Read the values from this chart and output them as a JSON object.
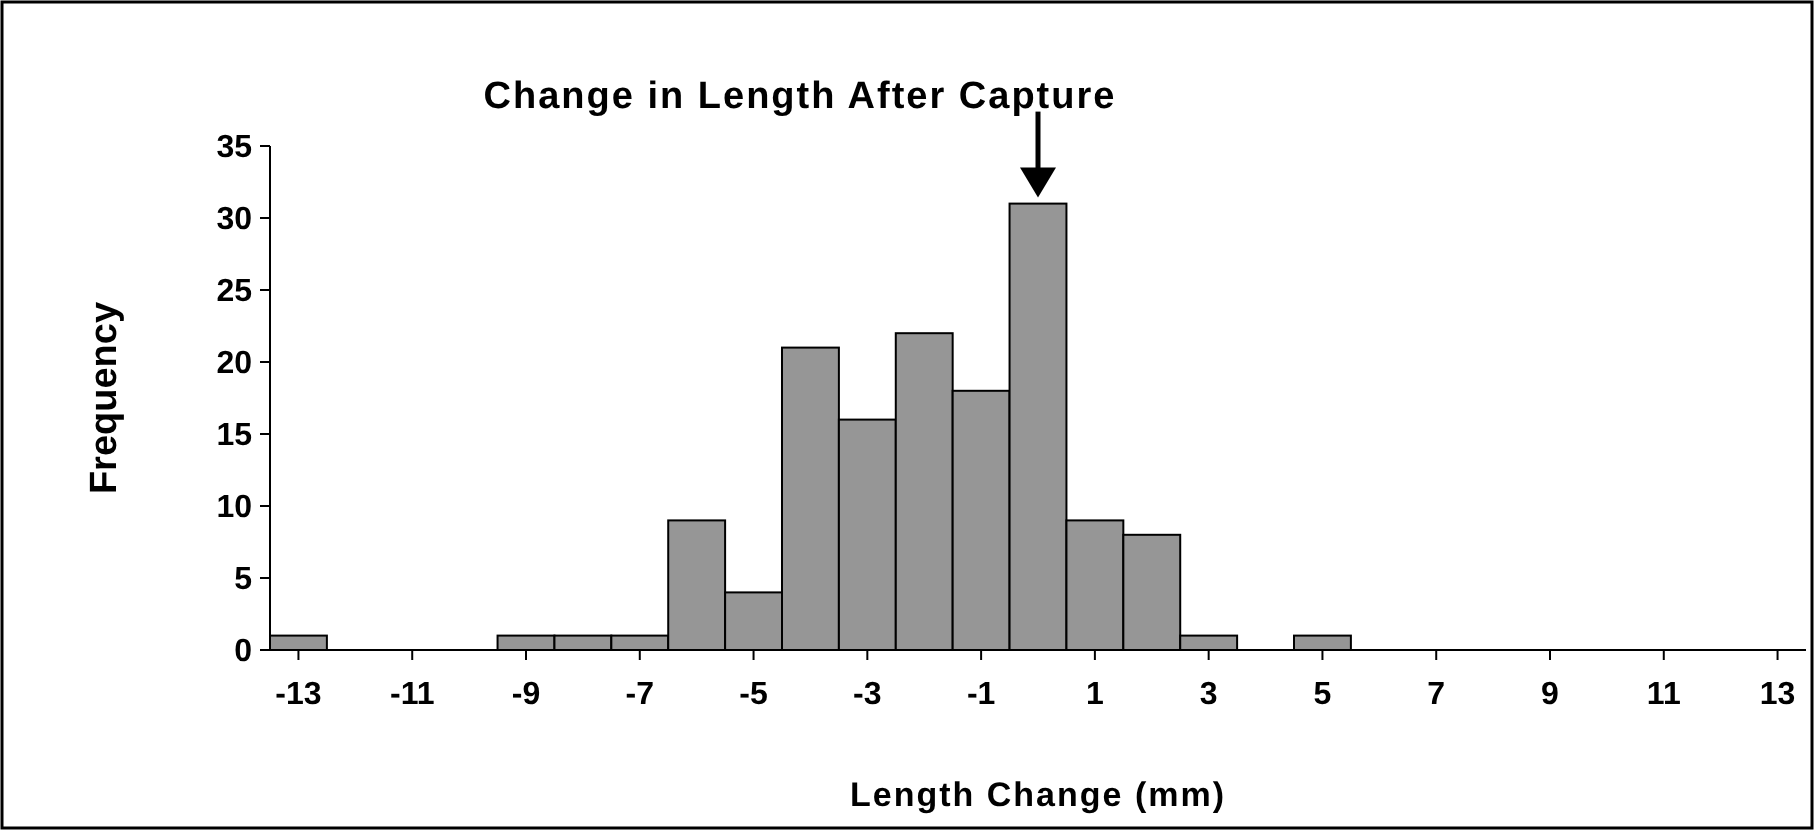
{
  "chart_data": {
    "type": "histogram",
    "title": "Change in Length After Capture",
    "xlabel": "Length Change (mm)",
    "ylabel": "Frequency",
    "bins": [
      -13.5,
      -12.5,
      -11.5,
      -10.5,
      -9.5,
      -8.5,
      -7.5,
      -6.5,
      -5.5,
      -4.5,
      -3.5,
      -2.5,
      -1.5,
      -0.5,
      0.5,
      1.5,
      2.5,
      3.5,
      4.5,
      5.5,
      6.5,
      7.5,
      8.5,
      9.5,
      10.5,
      11.5,
      12.5,
      13.5
    ],
    "values": [
      1,
      0,
      0,
      0,
      1,
      1,
      1,
      9,
      4,
      21,
      16,
      22,
      18,
      31,
      9,
      8,
      1,
      0,
      1,
      0,
      0,
      0,
      0,
      0,
      0,
      0,
      0
    ],
    "color": "#969696",
    "xlim": [
      -13.5,
      13.5
    ],
    "xticks": [
      -13,
      -11,
      -9,
      -7,
      -5,
      -3,
      -1,
      1,
      3,
      5,
      7,
      9,
      11,
      13
    ],
    "ylim": [
      0,
      35
    ],
    "yticks": [
      0,
      5,
      10,
      15,
      20,
      25,
      30,
      35
    ],
    "grid": false
  }
}
